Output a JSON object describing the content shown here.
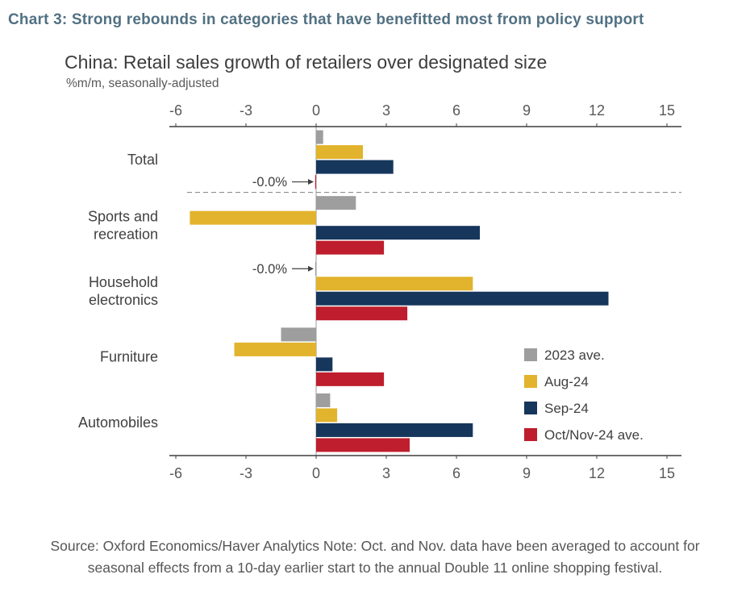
{
  "header": {
    "title": "Chart 3: Strong rebounds in categories that have benefitted most from policy support"
  },
  "colors": {
    "heading": "#527183",
    "axis": "#3f3f3f",
    "gray_series": "#9e9e9e",
    "yellow_series": "#e2b32c",
    "navy_series": "#16365c",
    "red_series": "#be1e2d"
  },
  "chart": {
    "title": "China: Retail sales growth of retailers over designated size",
    "subtitle": "%m/m, seasonally-adjusted"
  },
  "chart_data": {
    "type": "bar",
    "orientation": "horizontal",
    "title": "China: Retail sales growth of retailers over designated size",
    "xlabel": "%m/m, seasonally-adjusted",
    "ylabel": "",
    "xlim": [
      -6,
      15
    ],
    "xticks": [
      -6,
      -3,
      0,
      3,
      6,
      9,
      12,
      15
    ],
    "grid": false,
    "legend_position": "right-middle",
    "categories": [
      "Total",
      "Sports and recreation",
      "Household electronics",
      "Furniture",
      "Automobiles"
    ],
    "series": [
      {
        "name": "2023 ave.",
        "color": "#9e9e9e",
        "values": [
          0.3,
          1.7,
          -0.04,
          -1.5,
          0.6
        ]
      },
      {
        "name": "Aug-24",
        "color": "#e2b32c",
        "values": [
          2.0,
          -5.4,
          6.7,
          -3.5,
          0.9
        ]
      },
      {
        "name": "Sep-24",
        "color": "#16365c",
        "values": [
          3.3,
          7.0,
          12.5,
          0.7,
          6.7
        ]
      },
      {
        "name": "Oct/Nov-24 ave.",
        "color": "#be1e2d",
        "values": [
          -0.04,
          2.9,
          3.9,
          2.9,
          4.0
        ]
      }
    ],
    "separator_after_category": 0,
    "annotations": [
      {
        "text": "-0.0%",
        "category_index": 0,
        "series_index": 3
      },
      {
        "text": "-0.0%",
        "category_index": 2,
        "series_index": 0
      }
    ]
  },
  "footer": {
    "source": "Source: Oxford Economics/Haver Analytics Note: Oct. and Nov. data have been averaged to account for seasonal effects from a 10-day earlier start to the annual Double 11 online shopping festival."
  }
}
